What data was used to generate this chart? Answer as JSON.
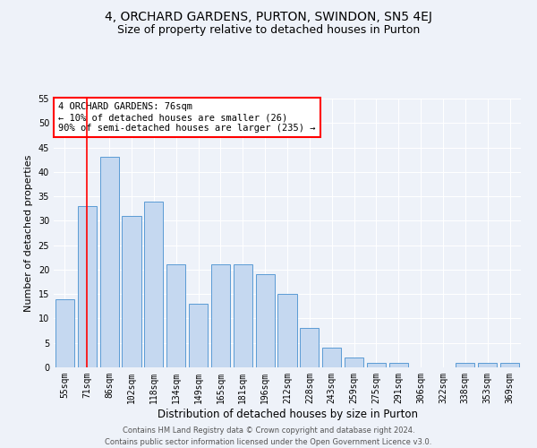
{
  "title1": "4, ORCHARD GARDENS, PURTON, SWINDON, SN5 4EJ",
  "title2": "Size of property relative to detached houses in Purton",
  "xlabel": "Distribution of detached houses by size in Purton",
  "ylabel": "Number of detached properties",
  "categories": [
    "55sqm",
    "71sqm",
    "86sqm",
    "102sqm",
    "118sqm",
    "134sqm",
    "149sqm",
    "165sqm",
    "181sqm",
    "196sqm",
    "212sqm",
    "228sqm",
    "243sqm",
    "259sqm",
    "275sqm",
    "291sqm",
    "306sqm",
    "322sqm",
    "338sqm",
    "353sqm",
    "369sqm"
  ],
  "values": [
    14,
    33,
    43,
    31,
    34,
    21,
    13,
    21,
    21,
    19,
    15,
    8,
    4,
    2,
    1,
    1,
    0,
    0,
    1,
    1,
    1
  ],
  "bar_color": "#c5d8f0",
  "bar_edge_color": "#5b9bd5",
  "vline_x": 1,
  "vline_color": "red",
  "annotation_title": "4 ORCHARD GARDENS: 76sqm",
  "annotation_line1": "← 10% of detached houses are smaller (26)",
  "annotation_line2": "90% of semi-detached houses are larger (235) →",
  "annotation_box_color": "white",
  "annotation_box_edge": "red",
  "ylim": [
    0,
    55
  ],
  "yticks": [
    0,
    5,
    10,
    15,
    20,
    25,
    30,
    35,
    40,
    45,
    50,
    55
  ],
  "footer1": "Contains HM Land Registry data © Crown copyright and database right 2024.",
  "footer2": "Contains public sector information licensed under the Open Government Licence v3.0.",
  "bg_color": "#eef2f9",
  "grid_color": "#ffffff",
  "title1_fontsize": 10,
  "title2_fontsize": 9,
  "xlabel_fontsize": 8.5,
  "ylabel_fontsize": 8,
  "annot_fontsize": 7.5,
  "tick_fontsize": 7,
  "footer_fontsize": 6
}
